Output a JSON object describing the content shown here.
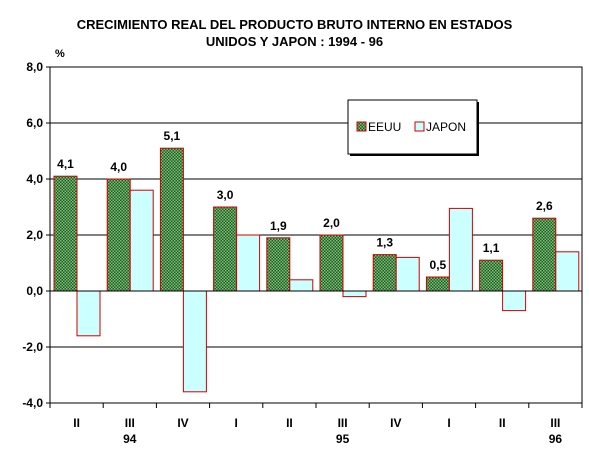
{
  "chart_data": {
    "type": "bar",
    "title_line1": "CRECIMIENTO REAL DEL PRODUCTO BRUTO INTERNO EN ESTADOS",
    "title_line2": "UNIDOS Y JAPON : 1994 - 96",
    "ylabel": "%",
    "ylim": [
      -4,
      8
    ],
    "yticks": [
      8,
      6,
      4,
      2,
      0,
      -2,
      -4
    ],
    "ytick_labels": [
      "8,0",
      "6,0",
      "4,0",
      "2,0",
      "0,0",
      "-2,0",
      "-4,0"
    ],
    "grid": true,
    "legend_position": "top-right",
    "categories": [
      "II",
      "III",
      "IV",
      "I",
      "II",
      "III",
      "IV",
      "I",
      "II",
      "III"
    ],
    "year_labels": [
      {
        "category_index": 1,
        "label": "94"
      },
      {
        "category_index": 5,
        "label": "95"
      },
      {
        "category_index": 9,
        "label": "96"
      }
    ],
    "series": [
      {
        "name": "EEUU",
        "color": "#2e7d2e",
        "pattern": "dotted-green",
        "values": [
          4.1,
          4.0,
          5.1,
          3.0,
          1.9,
          2.0,
          1.3,
          0.5,
          1.1,
          2.6
        ],
        "data_labels": [
          "4,1",
          "4,0",
          "5,1",
          "3,0",
          "1,9",
          "2,0",
          "1,3",
          "0,5",
          "1,1",
          "2,6"
        ]
      },
      {
        "name": "JAPON",
        "color": "#ccffff",
        "values": [
          -1.6,
          3.6,
          -3.6,
          2.0,
          0.4,
          -0.2,
          1.2,
          2.95,
          -0.7,
          1.4
        ]
      }
    ],
    "bar_outline_color": "#d00000"
  }
}
